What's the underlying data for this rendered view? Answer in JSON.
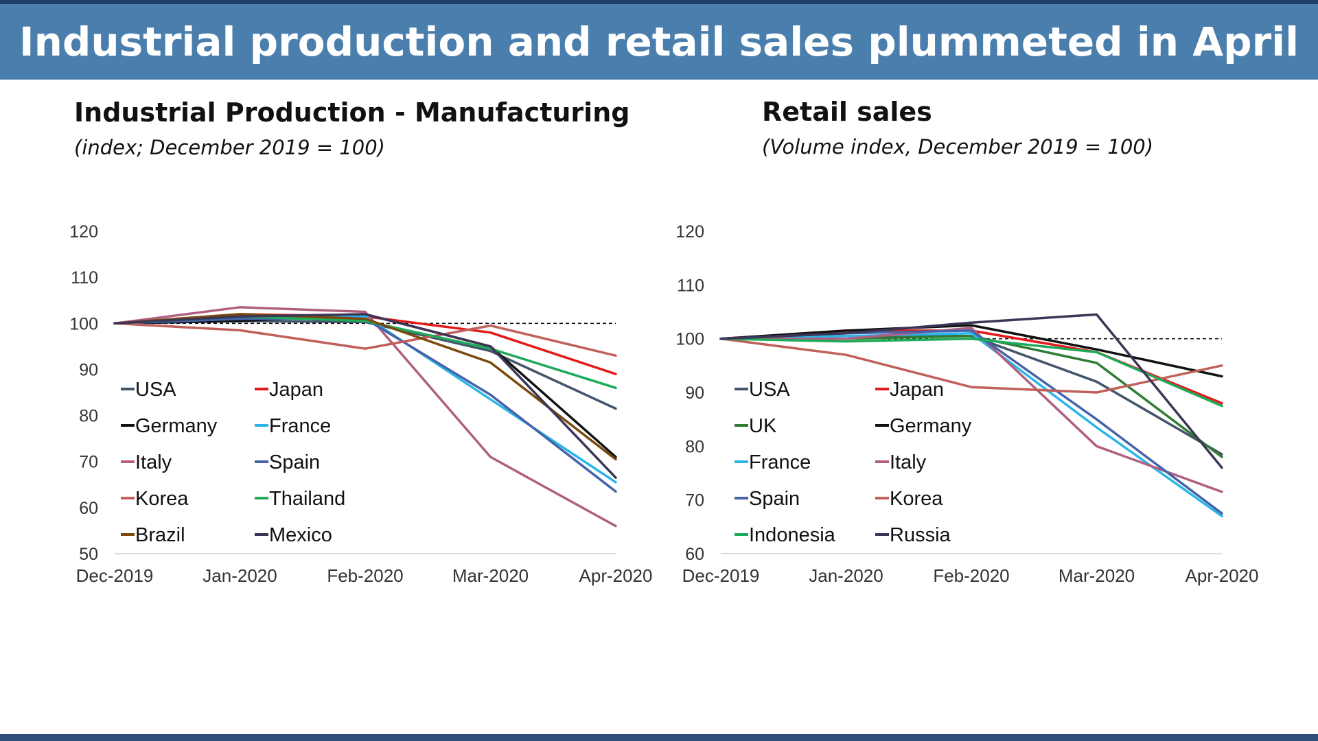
{
  "banner": {
    "title": "Industrial production and retail sales plummeted in April"
  },
  "chart_data": [
    {
      "type": "line",
      "title": "Industrial Production - Manufacturing",
      "subtitle": "(index; December 2019 = 100)",
      "x": [
        "Dec-2019",
        "Jan-2020",
        "Feb-2020",
        "Mar-2020",
        "Apr-2020"
      ],
      "ylim": [
        50,
        120
      ],
      "yticks": [
        50,
        60,
        70,
        80,
        90,
        100,
        110,
        120
      ],
      "reference_line": {
        "y": 100,
        "style": "dashed"
      },
      "grid": false,
      "legend_position": "bottom-left",
      "series": [
        {
          "name": "USA",
          "color": "#44546a",
          "values": [
            100,
            100.5,
            100.3,
            94,
            81.5
          ]
        },
        {
          "name": "Japan",
          "color": "#e31a1c",
          "values": [
            100,
            102,
            101.5,
            98,
            89
          ]
        },
        {
          "name": "Germany",
          "color": "#111111",
          "values": [
            100,
            100.5,
            102,
            95,
            71
          ]
        },
        {
          "name": "France",
          "color": "#2bb5e8",
          "values": [
            100,
            101,
            101.5,
            83.5,
            65.5
          ]
        },
        {
          "name": "Italy",
          "color": "#b05f80",
          "values": [
            100,
            103.5,
            102.5,
            71,
            56
          ]
        },
        {
          "name": "Spain",
          "color": "#4563a8",
          "values": [
            100,
            101,
            101,
            84.5,
            63.5
          ]
        },
        {
          "name": "Korea",
          "color": "#c0605a",
          "values": [
            100,
            98.5,
            94.5,
            99.5,
            93
          ]
        },
        {
          "name": "Thailand",
          "color": "#1faa5a",
          "values": [
            100,
            101.5,
            100.5,
            94.5,
            86
          ]
        },
        {
          "name": "Brazil",
          "color": "#7a4a0c",
          "values": [
            100,
            102,
            101,
            91.5,
            70.5
          ]
        },
        {
          "name": "Mexico",
          "color": "#3b3656",
          "values": [
            100,
            101.5,
            102,
            95,
            66.5
          ]
        }
      ]
    },
    {
      "type": "line",
      "title": "Retail sales",
      "subtitle": "(Volume index, December 2019 = 100)",
      "x": [
        "Dec-2019",
        "Jan-2020",
        "Feb-2020",
        "Mar-2020",
        "Apr-2020"
      ],
      "ylim": [
        60,
        120
      ],
      "yticks": [
        60,
        70,
        80,
        90,
        100,
        110,
        120
      ],
      "reference_line": {
        "y": 100,
        "style": "dashed"
      },
      "grid": false,
      "legend_position": "bottom-left",
      "series": [
        {
          "name": "USA",
          "color": "#44546a",
          "values": [
            100,
            100.5,
            100.5,
            92,
            78.5
          ]
        },
        {
          "name": "Japan",
          "color": "#e31a1c",
          "values": [
            100,
            101.5,
            101.5,
            97.5,
            88
          ]
        },
        {
          "name": "UK",
          "color": "#2e7d32",
          "values": [
            100,
            100,
            100.5,
            95.5,
            78
          ]
        },
        {
          "name": "Germany",
          "color": "#111111",
          "values": [
            100,
            101.5,
            102.5,
            98,
            93
          ]
        },
        {
          "name": "France",
          "color": "#2bb5e8",
          "values": [
            100,
            100.5,
            101,
            83.5,
            67
          ]
        },
        {
          "name": "Italy",
          "color": "#b05f80",
          "values": [
            100,
            100,
            102,
            80,
            71.5
          ]
        },
        {
          "name": "Spain",
          "color": "#4563a8",
          "values": [
            100,
            101,
            101.5,
            85,
            67.5
          ]
        },
        {
          "name": "Korea",
          "color": "#c0605a",
          "values": [
            100,
            97,
            91,
            90,
            95
          ]
        },
        {
          "name": "Indonesia",
          "color": "#1faa5a",
          "values": [
            100,
            99.5,
            100,
            97.5,
            87.5
          ]
        },
        {
          "name": "Russia",
          "color": "#3b3656",
          "values": [
            100,
            101,
            103,
            104.5,
            76
          ]
        }
      ]
    }
  ]
}
